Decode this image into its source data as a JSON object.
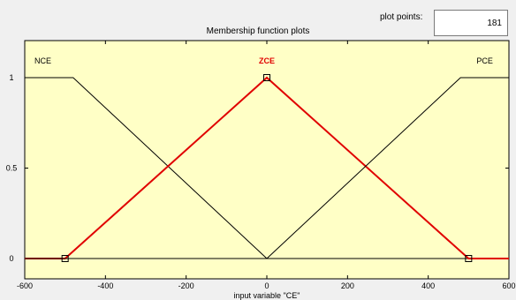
{
  "header": {
    "title": "Membership function plots",
    "plot_points_label": "plot points:",
    "plot_points_value": "181"
  },
  "colors": {
    "plot_background": "#ffffc6",
    "selected_mf": "#e00000",
    "other_mf": "#000000"
  },
  "chart_data": {
    "type": "line",
    "xlabel": "input variable \"CE\"",
    "ylabel": "",
    "xlim": [
      -600,
      600
    ],
    "ylim": [
      0,
      1
    ],
    "xticks": [
      -600,
      -400,
      -200,
      0,
      200,
      400,
      600
    ],
    "yticks": [
      0,
      0.5,
      1
    ],
    "ytick_labels": [
      "0",
      "0.5",
      "1"
    ],
    "grid": false,
    "series": [
      {
        "name": "NCE",
        "selected": false,
        "x": [
          -600,
          -480,
          0,
          600
        ],
        "y": [
          1,
          1,
          0,
          0
        ]
      },
      {
        "name": "ZCE",
        "selected": true,
        "x": [
          -600,
          -500,
          0,
          500,
          600
        ],
        "y": [
          0,
          0,
          1,
          0,
          0
        ]
      },
      {
        "name": "PCE",
        "selected": false,
        "x": [
          -600,
          0,
          480,
          600
        ],
        "y": [
          0,
          0,
          1,
          1
        ]
      }
    ],
    "markers": [
      {
        "series": "ZCE",
        "x": -500,
        "y": 0
      },
      {
        "series": "ZCE",
        "x": 0,
        "y": 1
      },
      {
        "series": "ZCE",
        "x": 500,
        "y": 0
      }
    ]
  }
}
